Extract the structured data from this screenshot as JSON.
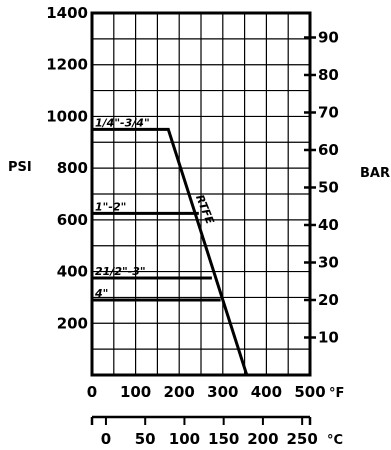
{
  "chart_data": {
    "type": "line",
    "title": "",
    "ylabel_left": "PSI",
    "ylabel_right": "BAR",
    "x_unit_f": "°F",
    "x_unit_c": "°C",
    "x_range_f": [
      0,
      500
    ],
    "y_range_psi": [
      0,
      1400
    ],
    "x_ticks_f": [
      "0",
      "100",
      "200",
      "300",
      "400",
      "500"
    ],
    "x_ticks_c": [
      "0",
      "50",
      "100",
      "150",
      "200",
      "250"
    ],
    "x_ticks_c_values_f": [
      32,
      122,
      212,
      302,
      392,
      482
    ],
    "y_ticks_psi": [
      "200",
      "400",
      "600",
      "800",
      "1000",
      "1200",
      "1400"
    ],
    "y_ticks_psi_values": [
      200,
      400,
      600,
      800,
      1000,
      1200,
      1400
    ],
    "y_ticks_bar": [
      "10",
      "20",
      "30",
      "40",
      "50",
      "60",
      "70",
      "80",
      "90"
    ],
    "y_ticks_bar_values": [
      10,
      20,
      30,
      40,
      50,
      60,
      70,
      80,
      90
    ],
    "grid": true,
    "series": [
      {
        "name": "1/4\"-3/4\"",
        "x": [
          0,
          175,
          355
        ],
        "y": [
          950,
          950,
          0
        ]
      },
      {
        "name": "1\"-2\"",
        "x": [
          0,
          245
        ],
        "y": [
          625,
          625
        ]
      },
      {
        "name": "21/2\"-3\"",
        "x": [
          0,
          275
        ],
        "y": [
          375,
          375
        ]
      },
      {
        "name": "4\"",
        "x": [
          0,
          295
        ],
        "y": [
          290,
          290
        ]
      }
    ],
    "annotation": {
      "text": "RTFE",
      "x": 238,
      "y": 690
    }
  }
}
